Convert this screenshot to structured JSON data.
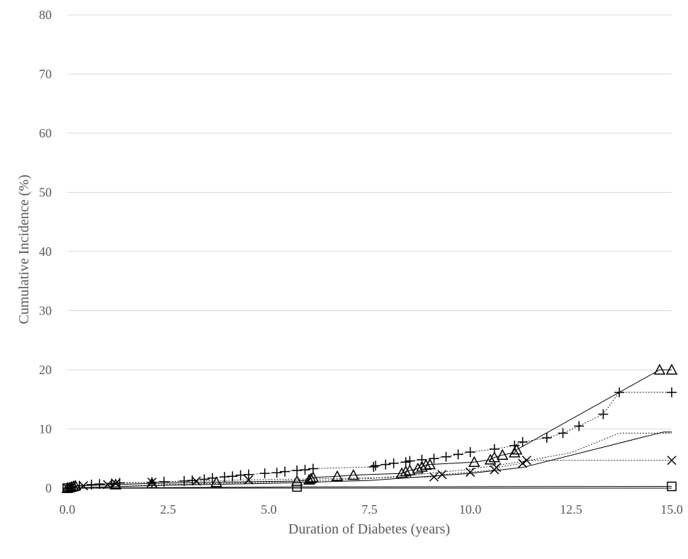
{
  "chart_data": {
    "type": "line",
    "title": "",
    "xlabel": "Duration of Diabetes (years)",
    "ylabel": "Cumulative Incidence (%)",
    "xlim": [
      0,
      15
    ],
    "ylim": [
      0,
      80
    ],
    "x_ticks": [
      "0.0",
      "2.5",
      "5.0",
      "7.5",
      "10.0",
      "12.5",
      "15.0"
    ],
    "y_ticks": [
      "0",
      "10",
      "20",
      "30",
      "40",
      "50",
      "60",
      "70",
      "80"
    ],
    "grid": "horizontal",
    "legend": "none",
    "series": [
      {
        "marker": "triangle",
        "line_style": "solid",
        "x": [
          0,
          0.05,
          0.1,
          0.15,
          0.2,
          1.2,
          2.1,
          3.7,
          5.7,
          6.0,
          6.05,
          6.1,
          6.7,
          7.1,
          8.3,
          8.4,
          8.5,
          8.7,
          8.8,
          8.9,
          9.0,
          10.1,
          10.5,
          10.6,
          10.8,
          11.1,
          11.15,
          14.7,
          15.0
        ],
        "y": [
          0,
          0.1,
          0.2,
          0.3,
          0.4,
          0.6,
          0.8,
          1.0,
          1.2,
          1.4,
          1.6,
          1.8,
          2.0,
          2.2,
          2.5,
          2.8,
          3.0,
          3.3,
          3.6,
          3.9,
          4.0,
          4.4,
          4.8,
          5.2,
          5.6,
          6.0,
          6.5,
          20.0,
          20.0
        ]
      },
      {
        "marker": "plus",
        "line_style": "dotted",
        "x": [
          0,
          0.1,
          0.3,
          0.6,
          0.8,
          1.1,
          1.3,
          2.1,
          2.4,
          2.9,
          3.1,
          3.4,
          3.6,
          3.9,
          4.1,
          4.3,
          4.5,
          4.9,
          5.2,
          5.4,
          5.7,
          5.9,
          6.1,
          7.6,
          7.65,
          7.9,
          8.1,
          8.4,
          8.5,
          8.8,
          9.1,
          9.4,
          9.7,
          10.0,
          10.6,
          11.1,
          11.3,
          11.9,
          12.3,
          12.7,
          13.3,
          13.7,
          15.0
        ],
        "y": [
          0,
          0.2,
          0.4,
          0.6,
          0.7,
          0.8,
          0.9,
          1.0,
          1.1,
          1.2,
          1.3,
          1.5,
          1.7,
          1.9,
          2.0,
          2.2,
          2.3,
          2.5,
          2.6,
          2.8,
          3.0,
          3.1,
          3.3,
          3.6,
          3.8,
          4.0,
          4.2,
          4.4,
          4.6,
          4.8,
          5.0,
          5.3,
          5.7,
          6.1,
          6.6,
          7.2,
          7.8,
          8.5,
          9.3,
          10.5,
          12.5,
          16.2,
          16.2
        ]
      },
      {
        "marker": "x",
        "line_style": "dotted",
        "x": [
          0,
          0.1,
          0.4,
          1.0,
          1.2,
          2.1,
          3.2,
          4.5,
          9.1,
          9.3,
          10.0,
          10.6,
          10.65,
          11.3,
          11.4,
          15.0
        ],
        "y": [
          0,
          0.2,
          0.4,
          0.6,
          0.8,
          1.0,
          1.2,
          1.4,
          1.9,
          2.3,
          2.7,
          3.1,
          3.5,
          4.2,
          4.7,
          4.7
        ]
      },
      {
        "marker": "square",
        "line_style": "solid",
        "x": [
          0,
          5.7,
          15.0
        ],
        "y": [
          0,
          0.2,
          0.3
        ]
      }
    ],
    "extra_lines": [
      {
        "line_style": "solid",
        "x": [
          0,
          2.5,
          5.0,
          7.5,
          9.0,
          10.0,
          11.3,
          14.8,
          15.0
        ],
        "y": [
          0,
          0.5,
          0.8,
          1.3,
          2.0,
          2.5,
          3.5,
          9.5,
          9.5
        ]
      },
      {
        "line_style": "dotted",
        "x": [
          0,
          2.5,
          5.0,
          7.5,
          9.0,
          10.0,
          11.3,
          12.5,
          13.7,
          15.0
        ],
        "y": [
          0,
          0.6,
          1.0,
          1.6,
          2.5,
          3.2,
          4.5,
          6.0,
          9.3,
          9.3
        ]
      }
    ]
  }
}
